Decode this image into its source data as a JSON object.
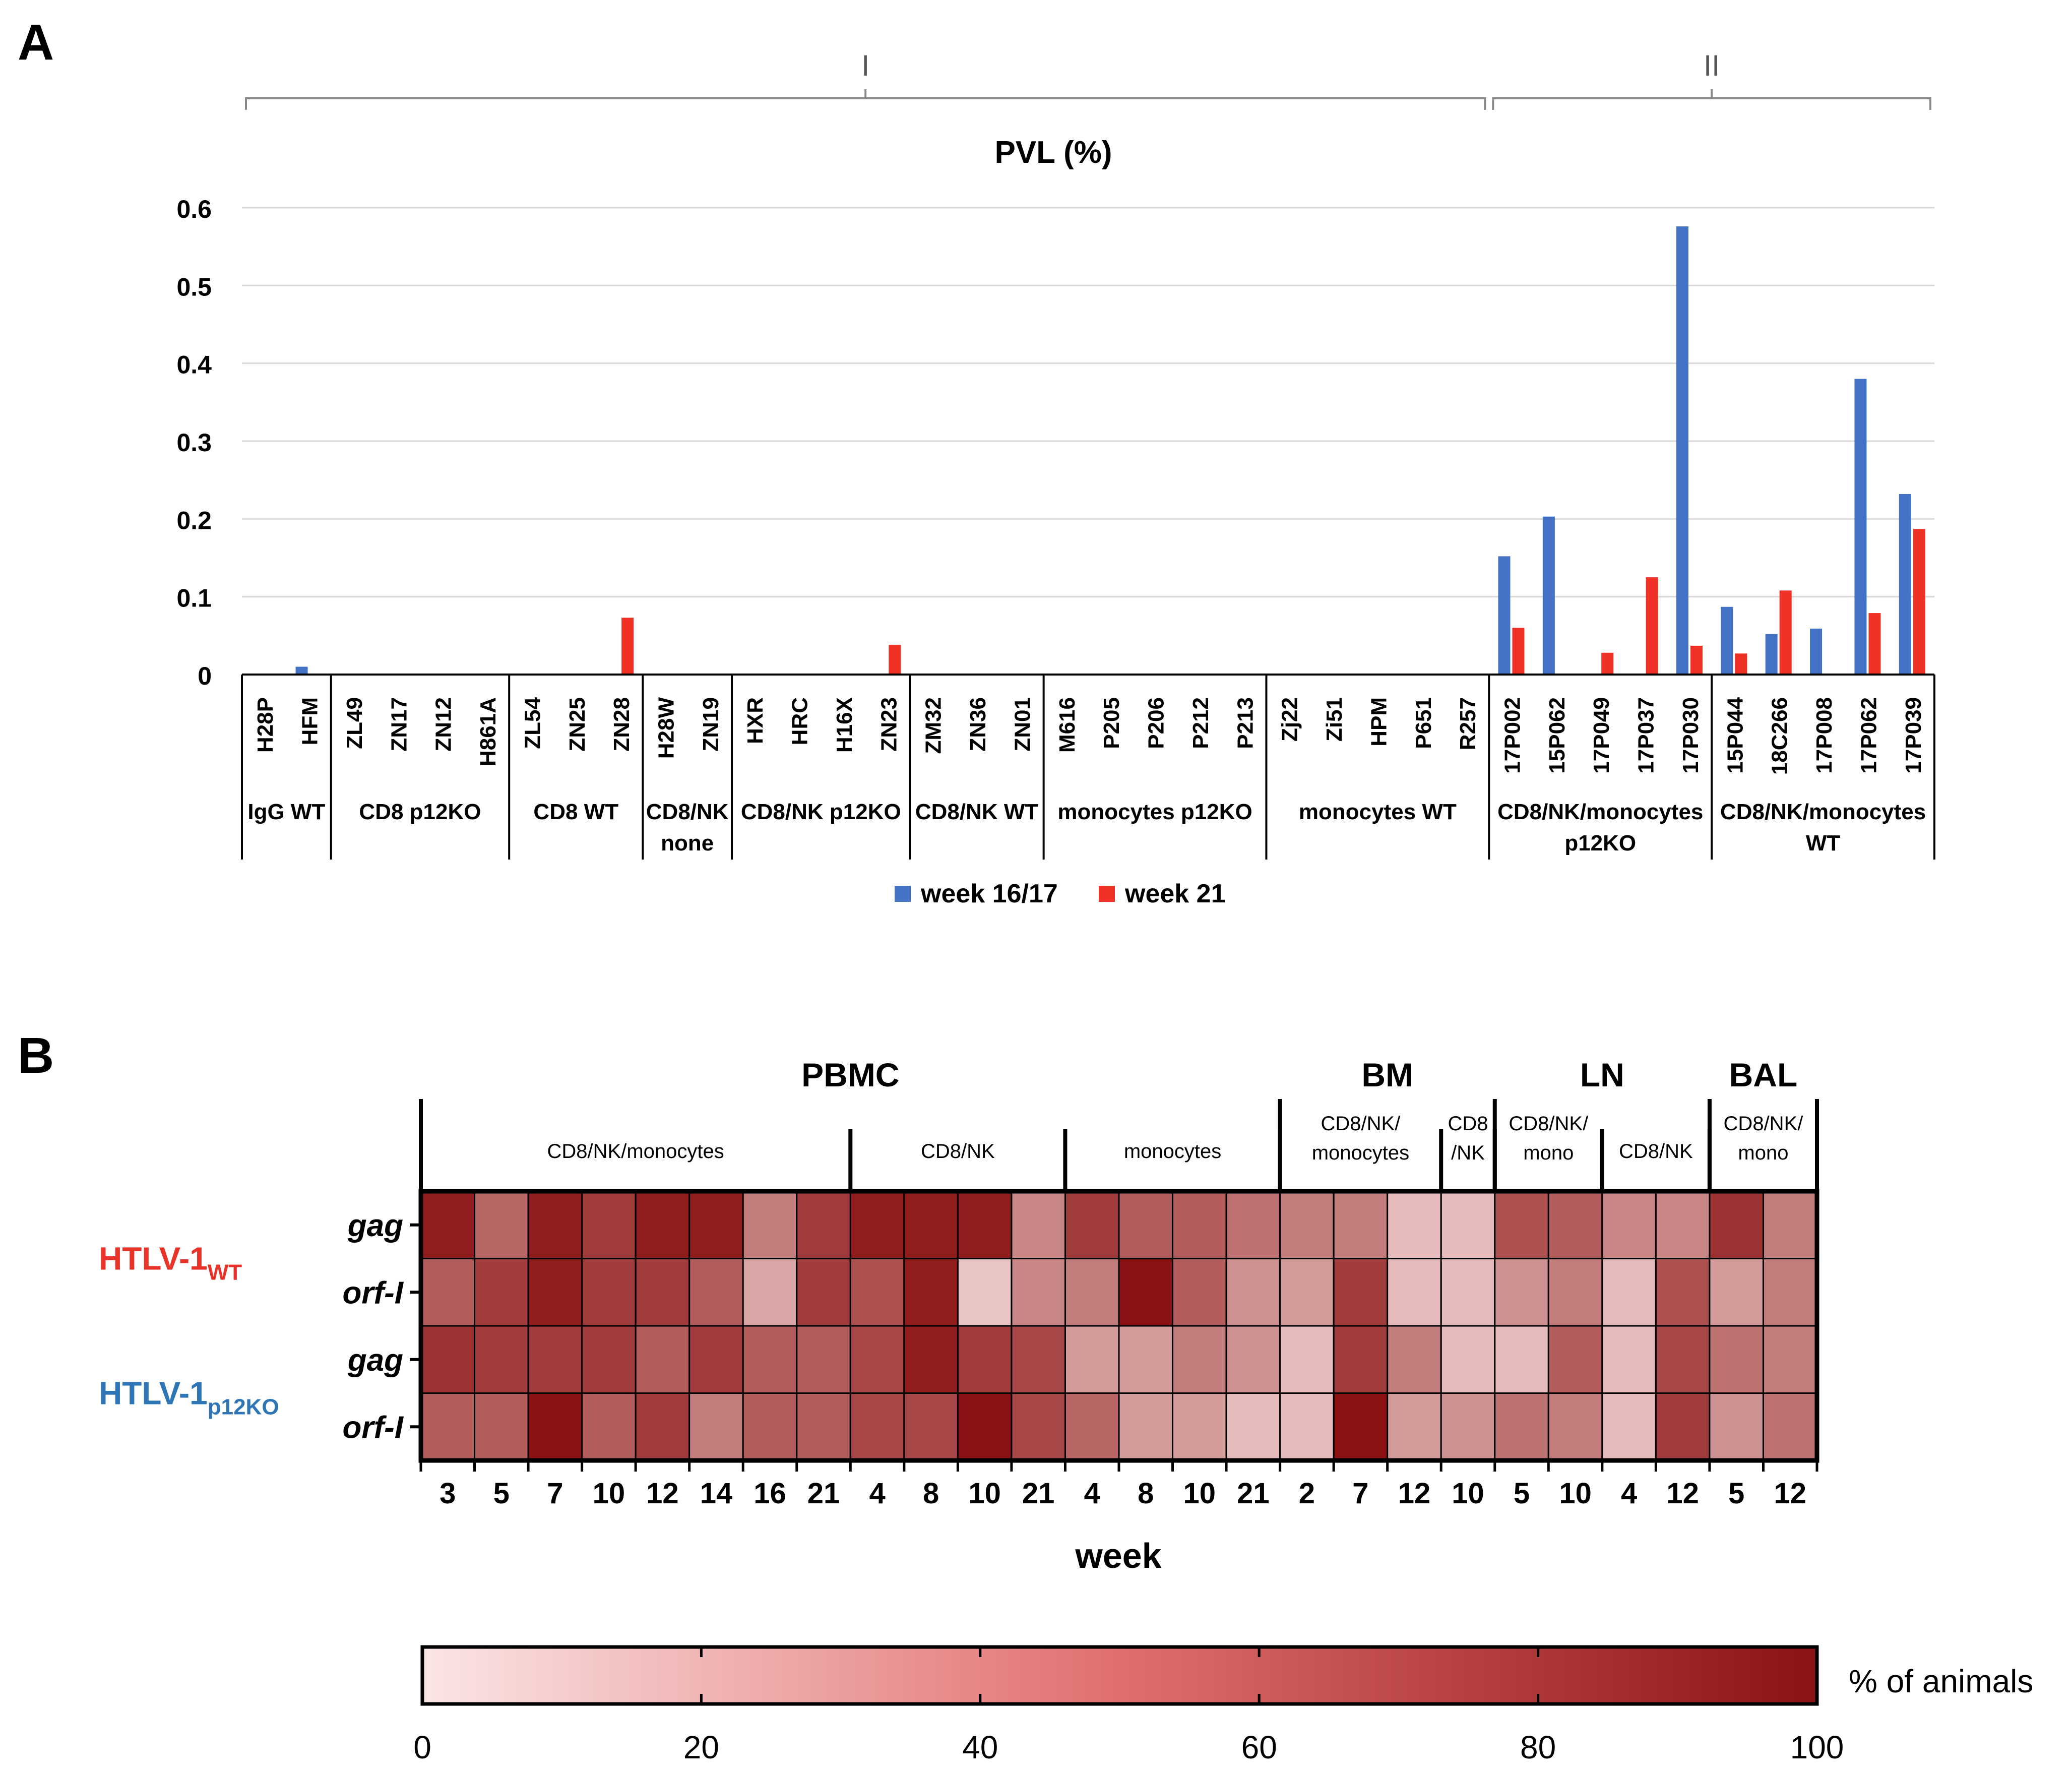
{
  "panels": {
    "a_label": "A",
    "b_label": "B"
  },
  "colors": {
    "week1": "#4472c4",
    "week2": "#ee3124",
    "wt_label": "#e8332a",
    "p12ko_label": "#2e75b6",
    "heat_low": "#fbe5e5",
    "heat_high": "#8b1212"
  },
  "chart_data": [
    {
      "type": "bar",
      "title": "PVL (%)",
      "ylim": [
        0,
        0.6
      ],
      "yticks": [
        "0",
        "0.1",
        "0.2",
        "0.3",
        "0.4",
        "0.5",
        "0.6"
      ],
      "categories": [
        "H28P",
        "HFM",
        "ZL49",
        "ZN17",
        "ZN12",
        "H861A",
        "ZL54",
        "ZN25",
        "ZN28",
        "H28W",
        "ZN19",
        "HXR",
        "HRC",
        "H16X",
        "ZN23",
        "ZM32",
        "ZN36",
        "ZN01",
        "M616",
        "P205",
        "P206",
        "P212",
        "P213",
        "Zj22",
        "Zi51",
        "HPM",
        "P651",
        "R257",
        "17P002",
        "15P062",
        "17P049",
        "17P037",
        "17P030",
        "15P044",
        "18C266",
        "17P008",
        "17P062",
        "17P039"
      ],
      "series": [
        {
          "name": "week 16/17",
          "values": [
            0,
            0.01,
            0,
            0,
            0,
            0,
            0,
            0,
            0,
            0,
            0,
            0,
            0,
            0,
            0,
            0,
            0,
            0,
            0,
            0,
            0,
            0,
            0,
            0,
            0,
            0,
            0,
            0,
            0.152,
            0.203,
            0,
            0,
            0.576,
            0.087,
            0.052,
            0.059,
            0.38,
            0.232
          ]
        },
        {
          "name": "week 21",
          "values": [
            0,
            0,
            0,
            0,
            0,
            0,
            0,
            0,
            0.073,
            0,
            0,
            0,
            0,
            0,
            0.038,
            0,
            0,
            0,
            0,
            0,
            0,
            0,
            0,
            0,
            0,
            0,
            0,
            0,
            0.06,
            0,
            0.028,
            0.125,
            0.037,
            0.027,
            0.108,
            0,
            0.079,
            0.187
          ]
        }
      ],
      "groups": [
        {
          "label": [
            "IgG WT"
          ],
          "n": 2
        },
        {
          "label": [
            "CD8 p12KO"
          ],
          "n": 4
        },
        {
          "label": [
            "CD8 WT"
          ],
          "n": 3
        },
        {
          "label": [
            "CD8/NK",
            "none"
          ],
          "n": 2
        },
        {
          "label": [
            "CD8/NK p12KO"
          ],
          "n": 4
        },
        {
          "label": [
            "CD8/NK WT"
          ],
          "n": 3
        },
        {
          "label": [
            "monocytes p12KO"
          ],
          "n": 5
        },
        {
          "label": [
            "monocytes WT"
          ],
          "n": 5
        },
        {
          "label": [
            "CD8/NK/monocytes",
            "p12KO"
          ],
          "n": 5
        },
        {
          "label": [
            "CD8/NK/monocytes",
            "WT"
          ],
          "n": 5
        }
      ],
      "phases": [
        {
          "label": "I",
          "from": 0,
          "to": 27
        },
        {
          "label": "II",
          "from": 28,
          "to": 37
        }
      ],
      "legend": [
        "week 16/17",
        "week 21"
      ],
      "legend_position": "bottom"
    },
    {
      "type": "heatmap",
      "xlabel": "week",
      "columns": [
        "3",
        "5",
        "7",
        "10",
        "12",
        "14",
        "16",
        "21",
        "4",
        "8",
        "10",
        "21",
        "4",
        "8",
        "10",
        "21",
        "2",
        "7",
        "12",
        "10",
        "5",
        "10",
        "4",
        "12",
        "5",
        "12"
      ],
      "tissues": [
        {
          "label": "PBMC",
          "from": 0,
          "to": 15
        },
        {
          "label": "BM",
          "from": 16,
          "to": 19
        },
        {
          "label": "LN",
          "from": 20,
          "to": 23
        },
        {
          "label": "BAL",
          "from": 24,
          "to": 25
        }
      ],
      "subgroups": [
        {
          "label": [
            "CD8/NK/monocytes"
          ],
          "from": 0,
          "to": 7
        },
        {
          "label": [
            "CD8/NK"
          ],
          "from": 8,
          "to": 11
        },
        {
          "label": [
            "monocytes"
          ],
          "from": 12,
          "to": 15
        },
        {
          "label": [
            "CD8/NK/",
            "monocytes"
          ],
          "from": 16,
          "to": 18
        },
        {
          "label": [
            "CD8",
            "/NK"
          ],
          "from": 19,
          "to": 19
        },
        {
          "label": [
            "CD8/NK/",
            "mono"
          ],
          "from": 20,
          "to": 21
        },
        {
          "label": [
            "CD8/NK"
          ],
          "from": 22,
          "to": 23
        },
        {
          "label": [
            "CD8/NK/",
            "mono"
          ],
          "from": 24,
          "to": 25
        }
      ],
      "rows": [
        {
          "gene": "gag",
          "values": [
            95,
            60,
            95,
            80,
            95,
            95,
            50,
            80,
            95,
            95,
            95,
            45,
            80,
            65,
            65,
            55,
            50,
            50,
            20,
            20,
            70,
            65,
            45,
            45,
            85,
            50
          ]
        },
        {
          "gene": "orf-I",
          "values": [
            65,
            80,
            95,
            80,
            80,
            65,
            30,
            80,
            70,
            95,
            15,
            45,
            50,
            100,
            65,
            40,
            35,
            80,
            20,
            20,
            40,
            50,
            20,
            70,
            35,
            50
          ]
        },
        {
          "gene": "gag",
          "values": [
            85,
            80,
            80,
            80,
            65,
            80,
            65,
            65,
            75,
            95,
            80,
            75,
            35,
            35,
            50,
            40,
            20,
            80,
            50,
            20,
            20,
            65,
            20,
            75,
            55,
            50
          ]
        },
        {
          "gene": "orf-I",
          "values": [
            65,
            65,
            100,
            65,
            80,
            50,
            65,
            65,
            75,
            75,
            100,
            75,
            60,
            35,
            35,
            20,
            20,
            100,
            35,
            40,
            55,
            50,
            20,
            80,
            40,
            55
          ]
        }
      ],
      "strains": [
        {
          "prefix": "HTLV-1",
          "sub": "WT",
          "rows": [
            0,
            1
          ]
        },
        {
          "prefix": "HTLV-1",
          "sub": "p12KO",
          "rows": [
            2,
            3
          ]
        }
      ],
      "colorbar": {
        "label": "% of animals",
        "min": 0,
        "max": 100,
        "ticks": [
          "0",
          "20",
          "40",
          "60",
          "80",
          "100"
        ]
      }
    }
  ]
}
